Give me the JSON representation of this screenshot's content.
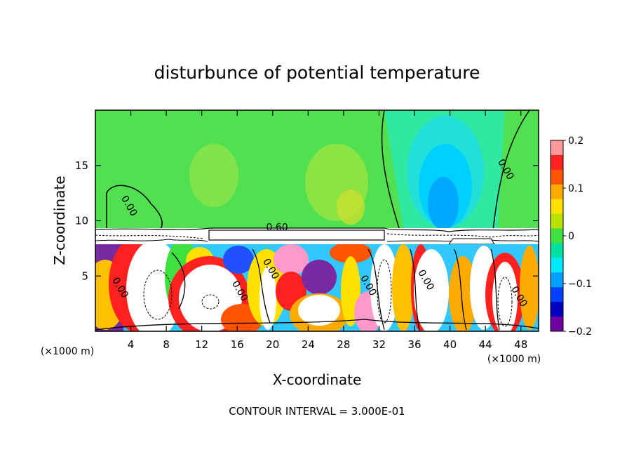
{
  "chart_data": {
    "type": "heatmap",
    "title": "disturbunce of potential temperature",
    "xlabel": "X-coordinate",
    "ylabel": "Z-coordinate",
    "x_unit": "(×1000 m)",
    "x_unit_right": "(×1000 m)",
    "xlim": [
      0,
      50
    ],
    "ylim": [
      0,
      20
    ],
    "x_ticks": [
      4,
      8,
      12,
      16,
      20,
      24,
      28,
      32,
      36,
      40,
      44,
      48
    ],
    "y_ticks": [
      5,
      10,
      15
    ],
    "colorbar": {
      "min": -0.2,
      "max": 0.2,
      "ticks": [
        0.2,
        0.1,
        0,
        -0.1,
        -0.2
      ],
      "tick_labels": [
        "0.2",
        "0.1",
        "0",
        "−0.1",
        "−0.2"
      ],
      "colors": [
        "#ff9999",
        "#ff2020",
        "#ff5500",
        "#ffaa00",
        "#ffe000",
        "#b8e000",
        "#40e040",
        "#00e0a0",
        "#00e8ff",
        "#00a0ff",
        "#0040ff",
        "#0000c0",
        "#7000a0"
      ]
    },
    "contour_labels": [
      {
        "text": "0.00",
        "x": 3.5,
        "z": 11.2
      },
      {
        "text": "0.00",
        "x": 46,
        "z": 14.5
      },
      {
        "text": "0.60",
        "x": 20.5,
        "z": 9.1
      },
      {
        "text": "0.00",
        "x": 2.5,
        "z": 3.8
      },
      {
        "text": "0.00",
        "x": 19.5,
        "z": 5.5
      },
      {
        "text": "0.00",
        "x": 16,
        "z": 3.5
      },
      {
        "text": "0.00",
        "x": 30.5,
        "z": 4
      },
      {
        "text": "0.00",
        "x": 37,
        "z": 4.5
      },
      {
        "text": "0.00",
        "x": 47.5,
        "z": 3
      }
    ],
    "contour_interval_label": "CONTOUR INTERVAL = 3.000E-01"
  }
}
